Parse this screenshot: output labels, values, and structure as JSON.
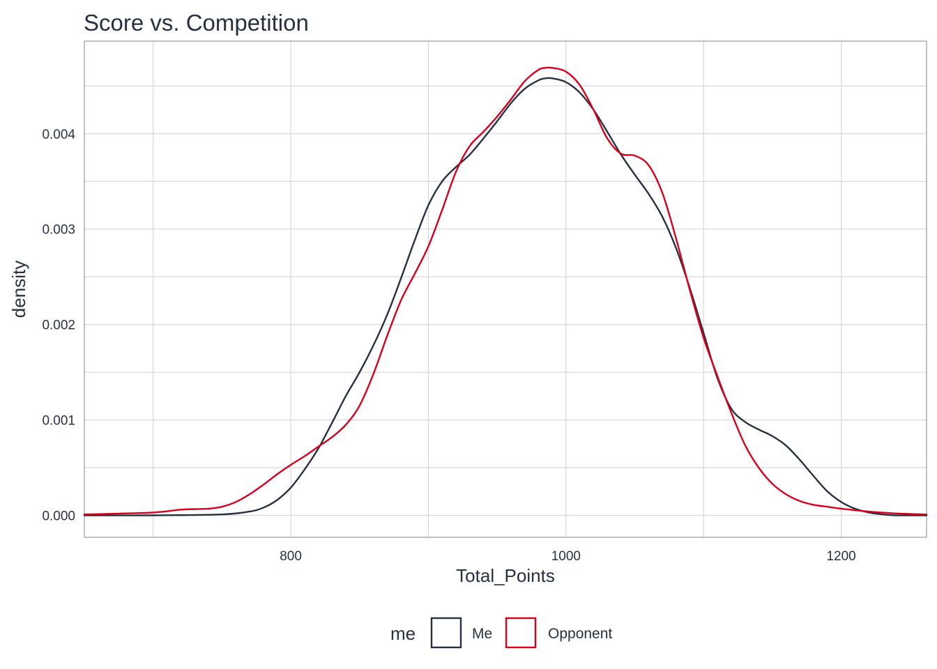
{
  "chart_data": {
    "type": "line",
    "title": "Score vs. Competition",
    "xlabel": "Total_Points",
    "ylabel": "density",
    "xlim": [
      650,
      1262
    ],
    "ylim": [
      -0.00023,
      0.00497
    ],
    "x_ticks": [
      800,
      1000,
      1200
    ],
    "y_ticks": [
      0.0,
      0.001,
      0.002,
      0.003,
      0.004
    ],
    "x_tick_labels": [
      "800",
      "1000",
      "1200"
    ],
    "y_tick_labels": [
      "0.000",
      "0.001",
      "0.002",
      "0.003",
      "0.004"
    ],
    "grid": true,
    "legend": {
      "title": "me",
      "position": "bottom",
      "entries": [
        "Me",
        "Opponent"
      ]
    },
    "series": [
      {
        "name": "Me",
        "color": "#263040",
        "x": [
          650,
          700,
          750,
          770,
          780,
          790,
          800,
          810,
          820,
          830,
          840,
          850,
          860,
          870,
          880,
          890,
          900,
          910,
          920,
          930,
          940,
          950,
          960,
          970,
          980,
          985,
          990,
          1000,
          1010,
          1020,
          1030,
          1040,
          1050,
          1060,
          1070,
          1080,
          1090,
          1100,
          1110,
          1120,
          1130,
          1140,
          1150,
          1160,
          1170,
          1180,
          1190,
          1200,
          1210,
          1220,
          1230,
          1240,
          1262
        ],
        "y": [
          0.0,
          0.0,
          1e-05,
          4e-05,
          8e-05,
          0.00016,
          0.00029,
          0.00048,
          0.0007,
          0.00097,
          0.00125,
          0.0015,
          0.00178,
          0.0021,
          0.00248,
          0.00288,
          0.00325,
          0.0035,
          0.00365,
          0.00378,
          0.00395,
          0.00413,
          0.00432,
          0.00447,
          0.00456,
          0.00458,
          0.00458,
          0.00454,
          0.00443,
          0.00425,
          0.00402,
          0.00378,
          0.00357,
          0.00337,
          0.00313,
          0.0028,
          0.00238,
          0.00191,
          0.00144,
          0.00112,
          0.00098,
          0.0009,
          0.00083,
          0.00073,
          0.00058,
          0.00041,
          0.00025,
          0.00014,
          7e-05,
          3e-05,
          1e-05,
          0.0,
          0.0
        ]
      },
      {
        "name": "Opponent",
        "color": "#d9001b",
        "x": [
          650,
          700,
          720,
          740,
          750,
          760,
          770,
          780,
          790,
          800,
          810,
          820,
          830,
          840,
          850,
          860,
          870,
          880,
          890,
          900,
          910,
          920,
          930,
          940,
          950,
          960,
          970,
          980,
          985,
          990,
          1000,
          1010,
          1020,
          1030,
          1040,
          1050,
          1060,
          1070,
          1080,
          1090,
          1100,
          1110,
          1120,
          1130,
          1140,
          1150,
          1160,
          1170,
          1180,
          1190,
          1200,
          1220,
          1240,
          1262
        ],
        "y": [
          1e-05,
          3e-05,
          6e-05,
          7e-05,
          9e-05,
          0.00014,
          0.00022,
          0.00032,
          0.00043,
          0.00053,
          0.00062,
          0.00072,
          0.00082,
          0.00095,
          0.00115,
          0.00148,
          0.00188,
          0.00225,
          0.00253,
          0.00282,
          0.0032,
          0.0036,
          0.00387,
          0.00402,
          0.00418,
          0.00436,
          0.00455,
          0.00467,
          0.00469,
          0.00469,
          0.00465,
          0.00451,
          0.00425,
          0.00395,
          0.00379,
          0.00377,
          0.00367,
          0.00338,
          0.0029,
          0.00236,
          0.00186,
          0.00146,
          0.00108,
          0.00074,
          0.0005,
          0.00033,
          0.00022,
          0.00015,
          0.00011,
          9e-05,
          7e-05,
          4e-05,
          2e-05,
          1e-05
        ]
      }
    ]
  }
}
